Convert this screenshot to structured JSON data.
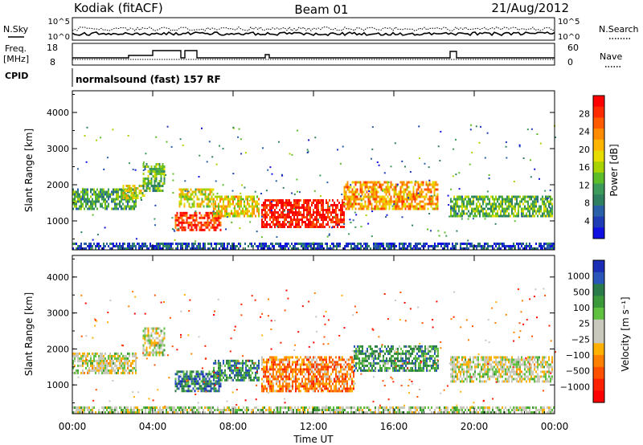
{
  "header": {
    "station": "Kodiak (fitACF)",
    "beam": "Beam 01",
    "date": "21/Aug/2012"
  },
  "panels": {
    "nsky_label": "N.Sky",
    "nsearch_label": "N.Search",
    "nsky_ticks": [
      "10^5",
      "10^0"
    ],
    "nsearch_ticks": [
      "10^5",
      "10^0"
    ],
    "freq_label_1": "Freq.",
    "freq_label_2": "[MHz]",
    "freq_ticks": [
      "18",
      "8"
    ],
    "nave_label": "Nave",
    "nave_ticks": [
      "60",
      "0"
    ],
    "cpid_label": "CPID",
    "cpid_text": "normalsound (fast) 157 RF"
  },
  "chart_data": [
    {
      "type": "heatmap",
      "name": "power",
      "ylabel": "Slant Range [km]",
      "yticks": [
        "1000",
        "2000",
        "3000",
        "4000"
      ],
      "ylim": [
        200,
        4600
      ],
      "xlim": [
        0,
        24
      ],
      "colorbar": {
        "label": "Power [dB]",
        "ticks": [
          "28",
          "24",
          "20",
          "16",
          "12",
          "8",
          "4"
        ],
        "colors": [
          "#ff0000",
          "#ff2a00",
          "#ff5a00",
          "#ff8c00",
          "#ffb400",
          "#e6dc00",
          "#a8d200",
          "#5cbc2a",
          "#3c9a5a",
          "#2e8060",
          "#2a60a8",
          "#1e3cb4",
          "#1010e0"
        ]
      },
      "bands": [
        {
          "x0": 0.0,
          "x1": 3.2,
          "y0": 1300,
          "y1": 1900,
          "level": 0.35
        },
        {
          "x0": 2.5,
          "x1": 3.6,
          "y0": 1600,
          "y1": 2000,
          "level": 0.55
        },
        {
          "x0": 3.5,
          "x1": 4.6,
          "y0": 1800,
          "y1": 2600,
          "level": 0.4
        },
        {
          "x0": 5.1,
          "x1": 7.4,
          "y0": 750,
          "y1": 1250,
          "level": 0.9
        },
        {
          "x0": 5.3,
          "x1": 7.0,
          "y0": 1400,
          "y1": 1900,
          "level": 0.55
        },
        {
          "x0": 7.0,
          "x1": 9.3,
          "y0": 1150,
          "y1": 1700,
          "level": 0.6
        },
        {
          "x0": 9.4,
          "x1": 13.5,
          "y0": 800,
          "y1": 1600,
          "level": 0.95
        },
        {
          "x0": 13.5,
          "x1": 18.2,
          "y0": 1300,
          "y1": 2100,
          "level": 0.7
        },
        {
          "x0": 18.8,
          "x1": 23.9,
          "y0": 1100,
          "y1": 1700,
          "level": 0.4
        },
        {
          "x0": 0.0,
          "x1": 24.0,
          "y0": 220,
          "y1": 400,
          "level": 0.15
        }
      ]
    },
    {
      "type": "heatmap",
      "name": "velocity",
      "ylabel": "Slant Range [km]",
      "xlabel": "Time UT",
      "yticks": [
        "1000",
        "2000",
        "3000",
        "4000"
      ],
      "xticks": [
        "00:00",
        "04:00",
        "08:00",
        "12:00",
        "16:00",
        "20:00",
        "00:00"
      ],
      "ylim": [
        200,
        4600
      ],
      "xlim": [
        0,
        24
      ],
      "colorbar": {
        "label": "Velocity [m s⁻¹]",
        "ticks": [
          "1000",
          "500",
          "100",
          "25",
          "−25",
          "−100",
          "−500",
          "−1000"
        ],
        "colors": [
          "#1a2db4",
          "#2a55b8",
          "#2a7a4a",
          "#3a9a3a",
          "#60c040",
          "#c8c8bc",
          "#c8c8bc",
          "#ffb000",
          "#ff8000",
          "#ff5000",
          "#ff2000",
          "#ff0000"
        ]
      },
      "bands": [
        {
          "x0": 0.0,
          "x1": 3.2,
          "y0": 1300,
          "y1": 1900,
          "level": 0.5
        },
        {
          "x0": 3.5,
          "x1": 4.6,
          "y0": 1800,
          "y1": 2600,
          "level": 0.5
        },
        {
          "x0": 5.1,
          "x1": 7.4,
          "y0": 800,
          "y1": 1400,
          "level": 0.8
        },
        {
          "x0": 7.0,
          "x1": 9.3,
          "y0": 1150,
          "y1": 1700,
          "level": 0.75
        },
        {
          "x0": 9.4,
          "x1": 14.0,
          "y0": 800,
          "y1": 1800,
          "level": 0.3
        },
        {
          "x0": 14.0,
          "x1": 18.2,
          "y0": 1400,
          "y1": 2100,
          "level": 0.72
        },
        {
          "x0": 18.8,
          "x1": 23.9,
          "y0": 1100,
          "y1": 1800,
          "level": 0.5
        },
        {
          "x0": 0.0,
          "x1": 24.0,
          "y0": 220,
          "y1": 400,
          "level": 0.55
        }
      ]
    }
  ]
}
